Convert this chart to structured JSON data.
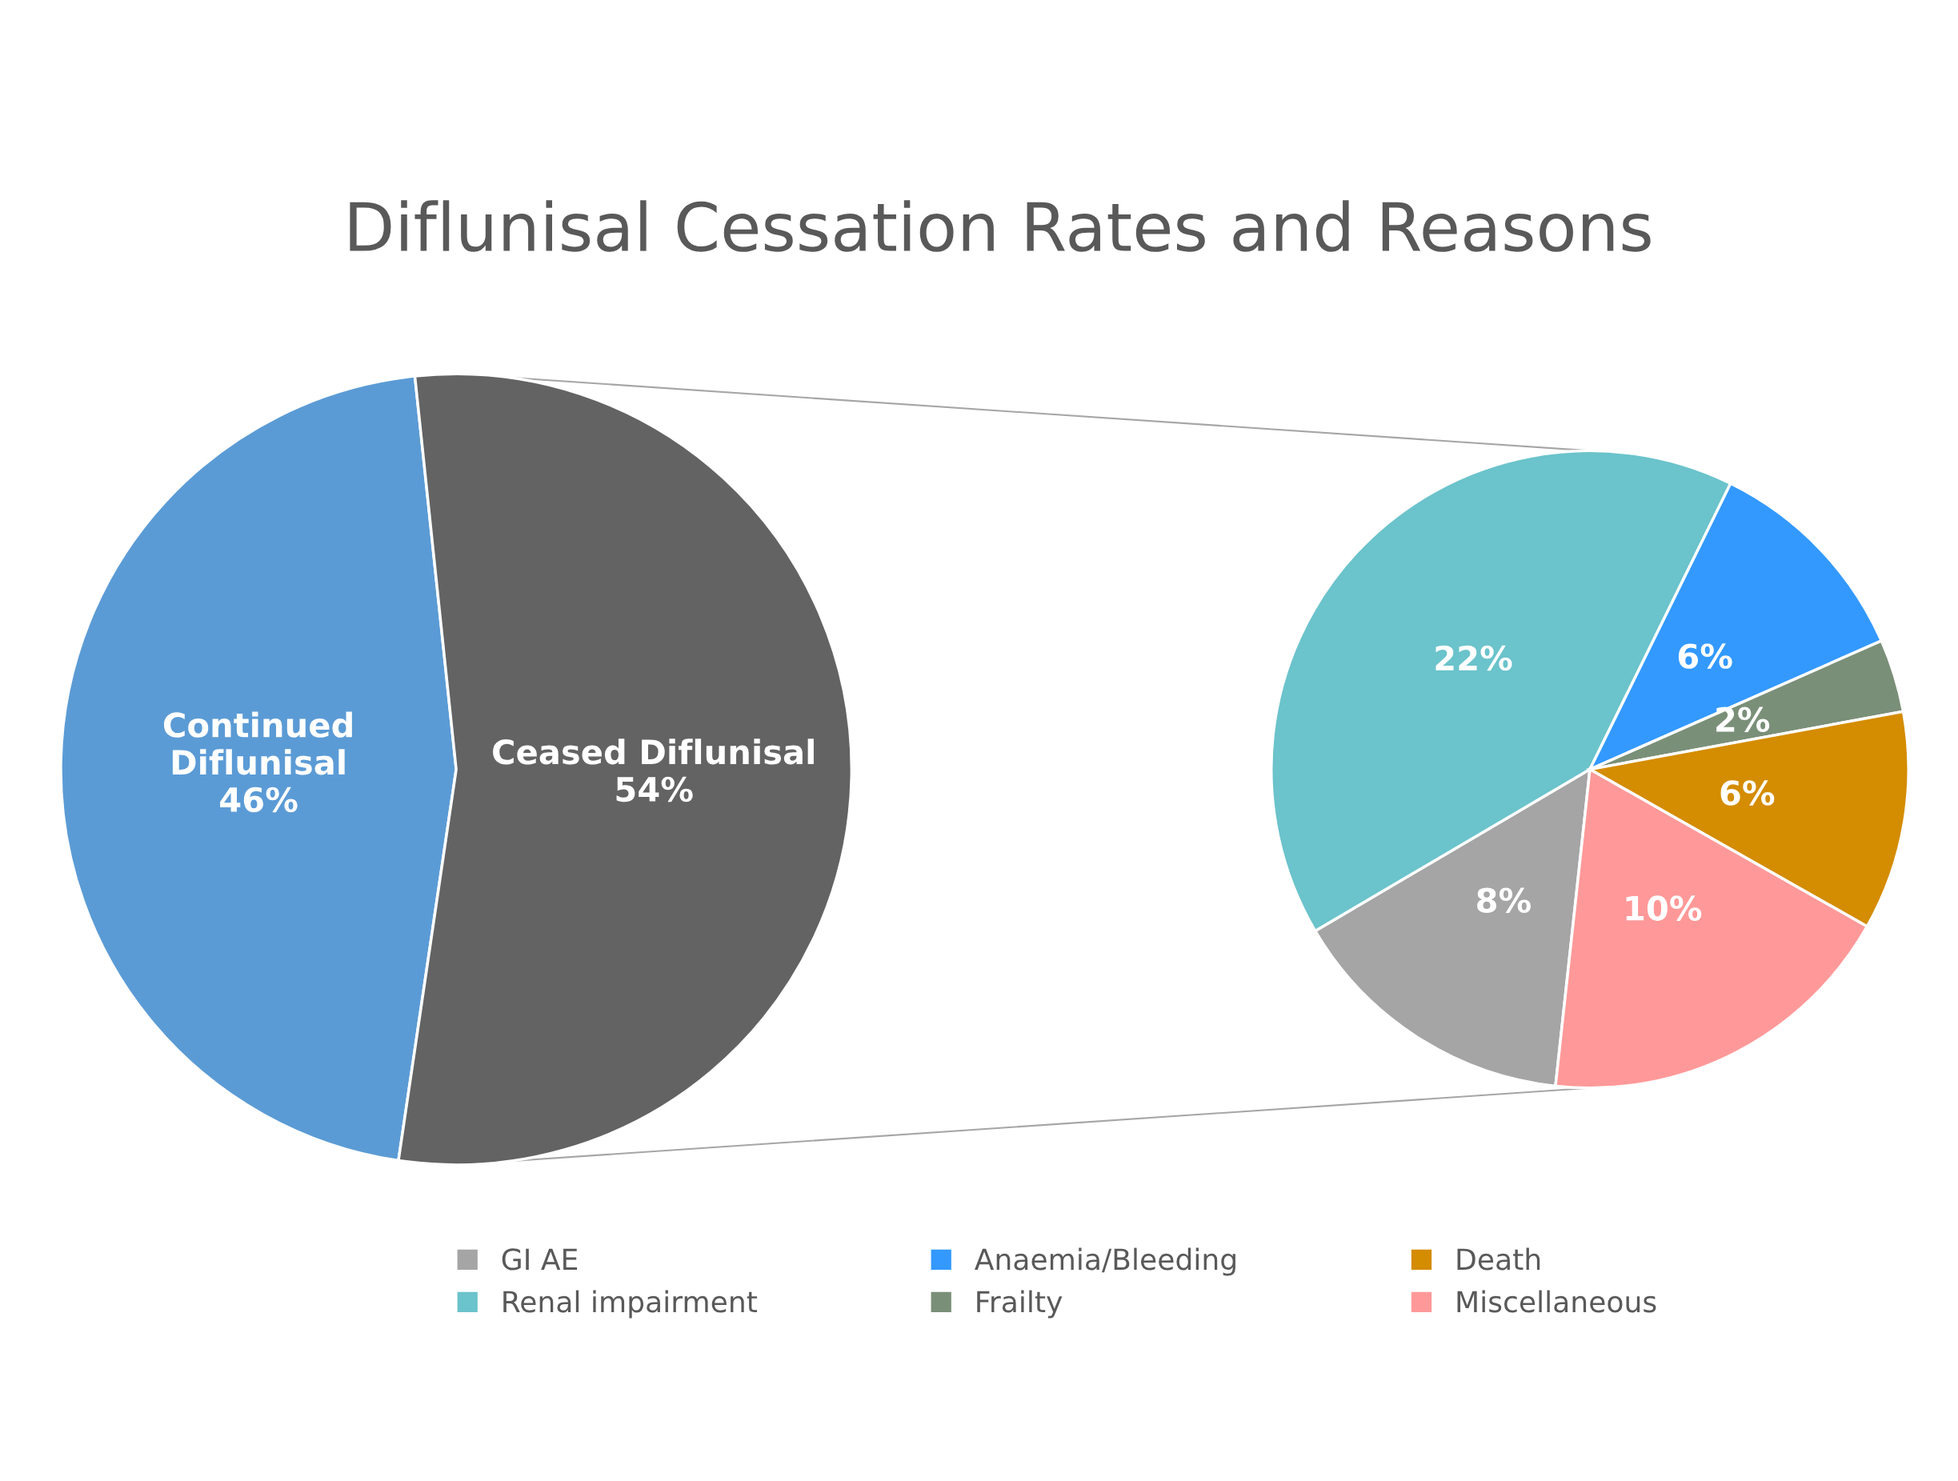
{
  "chart_data": [
    {
      "type": "pie",
      "title": "Diflunisal Cessation Rates and Reasons",
      "categories": [
        "Continued\nDiflunisal",
        "Ceased Diflunisal"
      ],
      "values": [
        46,
        54
      ],
      "colors": [
        "#5b9bd5",
        "#636363"
      ],
      "value_labels": [
        "46%",
        "54%"
      ],
      "legend": false
    },
    {
      "type": "pie",
      "categories": [
        "GI AE",
        "Renal impairment",
        "Anaemia/Bleeding",
        "Frailty",
        "Death",
        "Miscellaneous"
      ],
      "values": [
        8,
        22,
        6,
        2,
        6,
        10
      ],
      "colors": [
        "#a5a5a5",
        "#6bc3cb",
        "#3399ff",
        "#7a8f78",
        "#d48c00",
        "#ff9999"
      ],
      "value_labels": [
        "8%",
        "22%",
        "6%",
        "2%",
        "6%",
        "10%"
      ],
      "legend": "bottom"
    }
  ]
}
